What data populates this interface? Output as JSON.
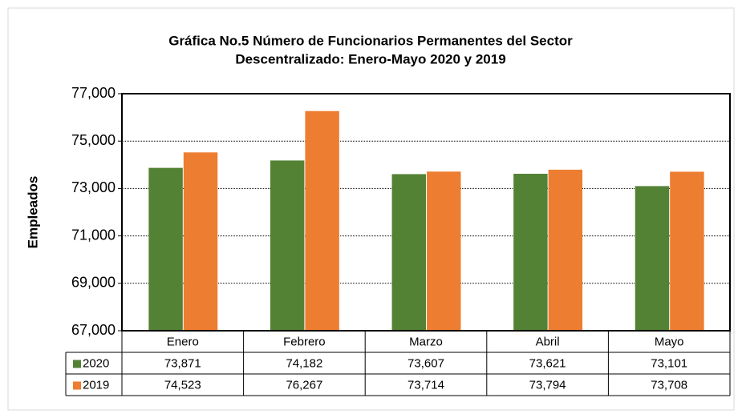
{
  "chart_data": {
    "type": "bar",
    "title": [
      "Gráfica No.5 Número de Funcionarios Permanentes del Sector",
      "Descentralizado: Enero-Mayo 2020 y 2019"
    ],
    "y_label": "Empleados",
    "categories": [
      "Enero",
      "Febrero",
      "Marzo",
      "Abril",
      "Mayo"
    ],
    "series": [
      {
        "name": "2020",
        "color": "#548235",
        "values": [
          73871,
          74182,
          73607,
          73621,
          73101
        ],
        "value_labels": [
          "73,871",
          "74,182",
          "73,607",
          "73,621",
          "73,101"
        ]
      },
      {
        "name": "2019",
        "color": "#ed7d31",
        "values": [
          74523,
          76267,
          73714,
          73794,
          73708
        ],
        "value_labels": [
          "74,523",
          "76,267",
          "73,714",
          "73,794",
          "73,708"
        ]
      }
    ],
    "ylim": [
      67000,
      77000
    ],
    "yticks": [
      {
        "value": 67000,
        "label": "67,000"
      },
      {
        "value": 69000,
        "label": "69,000"
      },
      {
        "value": 71000,
        "label": "71,000"
      },
      {
        "value": 73000,
        "label": "73,000"
      },
      {
        "value": 75000,
        "label": "75,000"
      },
      {
        "value": 77000,
        "label": "77,000"
      }
    ],
    "grid": true
  }
}
